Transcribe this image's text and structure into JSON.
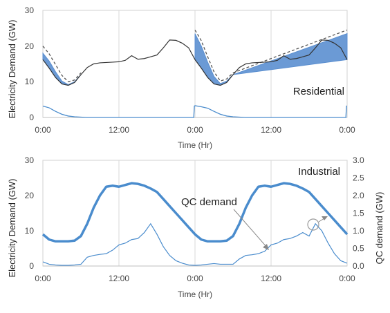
{
  "chart_data": [
    {
      "type": "line",
      "panel": "top",
      "annotation": "Residential",
      "xlabel": "Time (Hr)",
      "ylabel": "Electricity Demand (GW)",
      "x_tick_labels": [
        "0:00",
        "12:00",
        "0:00",
        "12:00",
        "0:00"
      ],
      "x_ticks_hours": [
        0,
        12,
        24,
        36,
        48
      ],
      "xlim": [
        0,
        48
      ],
      "ylim": [
        0,
        30
      ],
      "y_ticks": [
        0,
        10,
        20,
        30
      ],
      "grid": "vertical",
      "colors": {
        "base": "#333333",
        "band": "#5b8fd0",
        "dashed": "#555555",
        "qc": "#4a8ccd"
      },
      "series": [
        {
          "style": "solid-dark",
          "x": [
            0,
            1,
            2,
            3,
            4,
            5,
            6,
            7,
            8,
            9,
            10,
            11,
            12,
            13,
            14,
            15,
            16,
            17,
            18,
            19,
            20,
            21,
            22,
            23,
            24,
            25,
            26,
            27,
            28,
            29,
            30,
            31,
            32,
            33,
            34,
            35,
            36,
            37,
            38,
            39,
            40,
            41,
            42,
            43,
            44,
            45,
            46,
            47,
            48
          ],
          "values": [
            16.2,
            13.8,
            11.2,
            9.4,
            9.0,
            9.8,
            12.0,
            14.0,
            15.0,
            15.3,
            15.4,
            15.5,
            15.6,
            16.0,
            17.3,
            16.3,
            16.5,
            17.0,
            17.5,
            19.5,
            21.7,
            21.6,
            20.8,
            19.5,
            16.2,
            13.8,
            11.2,
            9.4,
            9.0,
            9.8,
            12.0,
            14.0,
            15.0,
            15.3,
            15.4,
            15.5,
            15.6,
            16.0,
            17.3,
            16.3,
            16.5,
            17.0,
            17.5,
            19.5,
            21.7,
            21.6,
            20.8,
            19.5,
            16.2
          ]
        },
        {
          "style": "band-upper",
          "x": [
            0,
            1,
            2,
            3,
            4,
            5,
            6,
            24,
            25,
            26,
            27,
            28,
            29,
            30,
            48
          ],
          "values": [
            18.0,
            15.8,
            12.8,
            10.2,
            9.2,
            10.0,
            12.0,
            23.5,
            20.0,
            15.5,
            11.5,
            9.5,
            10.2,
            12.0,
            23.5
          ]
        },
        {
          "style": "dashed",
          "x": [
            0,
            1,
            2,
            3,
            4,
            5,
            6,
            24,
            25,
            26,
            27,
            28,
            29,
            30,
            48
          ],
          "values": [
            20.0,
            17.8,
            14.8,
            11.8,
            10.0,
            10.5,
            12.5,
            24.5,
            21.5,
            17.0,
            12.8,
            10.2,
            10.8,
            12.5,
            24.5
          ]
        },
        {
          "style": "qc-demand",
          "x": [
            0,
            1,
            2,
            3,
            4,
            5,
            6,
            7,
            8,
            23.8,
            23.9,
            24,
            25,
            26,
            27,
            28,
            29,
            30,
            31,
            32,
            47.8,
            47.9,
            48
          ],
          "values": [
            3.2,
            2.7,
            1.7,
            0.9,
            0.4,
            0.2,
            0.1,
            0,
            0,
            0,
            3.2,
            3.3,
            3.0,
            2.6,
            1.7,
            0.9,
            0.4,
            0.2,
            0.1,
            0,
            0,
            3.2,
            3.2
          ]
        }
      ]
    },
    {
      "type": "line",
      "panel": "bottom",
      "annotation": "Industrial",
      "annotation2": "QC demand",
      "xlabel": "Time (Hr)",
      "ylabel": "Electricity Demand (GW)",
      "y2label": "QC demand (GW)",
      "x_tick_labels": [
        "0:00",
        "12:00",
        "0:00",
        "12:00",
        "0:00"
      ],
      "x_ticks_hours": [
        0,
        12,
        24,
        36,
        48
      ],
      "xlim": [
        0,
        48
      ],
      "ylim": [
        0,
        30
      ],
      "y_ticks": [
        0,
        10,
        20,
        30
      ],
      "y2lim": [
        0,
        3.0
      ],
      "y2_ticks": [
        "0.0",
        "0.5",
        "1.0",
        "1.5",
        "2.0",
        "2.5",
        "3.0"
      ],
      "grid": "vertical",
      "colors": {
        "industrial": "#4a8ccd",
        "qc": "#4a8ccd",
        "circle": "#888888",
        "arrow": "#888888"
      },
      "series": [
        {
          "style": "industrial-band",
          "axis": "left",
          "x": [
            0,
            1,
            2,
            3,
            4,
            5,
            6,
            7,
            8,
            9,
            10,
            11,
            12,
            13,
            14,
            15,
            16,
            17,
            18,
            19,
            20,
            21,
            22,
            23,
            24,
            25,
            26,
            27,
            28,
            29,
            30,
            31,
            32,
            33,
            34,
            35,
            36,
            37,
            38,
            39,
            40,
            41,
            42,
            43,
            44,
            45,
            46,
            47,
            48
          ],
          "values": [
            9.0,
            7.5,
            7.0,
            7.0,
            7.0,
            7.2,
            8.5,
            12.0,
            16.5,
            20.0,
            22.5,
            22.8,
            22.5,
            23.0,
            23.5,
            23.3,
            22.8,
            22.0,
            21.0,
            19.0,
            17.0,
            15.0,
            13.0,
            11.0,
            9.0,
            7.5,
            7.0,
            7.0,
            7.0,
            7.2,
            8.5,
            12.0,
            16.5,
            20.0,
            22.5,
            22.8,
            22.5,
            23.0,
            23.5,
            23.3,
            22.8,
            22.0,
            21.0,
            19.0,
            17.0,
            15.0,
            13.0,
            11.0,
            9.0
          ]
        },
        {
          "style": "qc-demand",
          "axis": "right",
          "x": [
            0,
            1,
            2,
            3,
            4,
            5,
            6,
            7,
            8,
            9,
            10,
            11,
            12,
            13,
            14,
            15,
            16,
            17,
            18,
            19,
            20,
            21,
            22,
            23,
            24,
            25,
            26,
            27,
            28,
            29,
            30,
            31,
            32,
            33,
            34,
            35,
            36,
            37,
            38,
            39,
            40,
            41,
            42,
            43,
            44,
            45,
            46,
            47,
            48
          ],
          "values": [
            0.12,
            0.05,
            0.03,
            0.02,
            0.02,
            0.03,
            0.05,
            0.25,
            0.3,
            0.33,
            0.35,
            0.45,
            0.6,
            0.65,
            0.75,
            0.78,
            0.95,
            1.2,
            0.9,
            0.55,
            0.3,
            0.15,
            0.08,
            0.03,
            0.02,
            0.03,
            0.05,
            0.07,
            0.05,
            0.05,
            0.05,
            0.2,
            0.3,
            0.32,
            0.35,
            0.42,
            0.6,
            0.65,
            0.75,
            0.78,
            0.85,
            0.95,
            0.85,
            1.2,
            1.0,
            0.65,
            0.35,
            0.15,
            0.08
          ]
        }
      ]
    }
  ]
}
